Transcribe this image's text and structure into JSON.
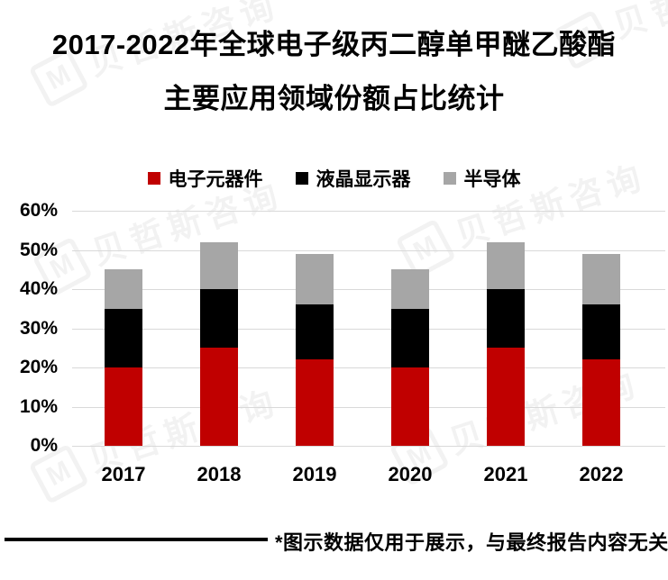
{
  "title": {
    "line1": "2017-2022年全球电子级丙二醇单甲醚乙酸酯",
    "line2": "主要应用领域份额占比统计"
  },
  "legend": {
    "items": [
      {
        "label": "电子元器件",
        "color": "#c00000"
      },
      {
        "label": "液晶显示器",
        "color": "#000000"
      },
      {
        "label": "半导体",
        "color": "#a6a6a6"
      }
    ]
  },
  "chart_data": {
    "type": "bar",
    "stacked": true,
    "title": "2017-2022年全球电子级丙二醇单甲醚乙酸酯主要应用领域份额占比统计",
    "categories": [
      "2017",
      "2018",
      "2019",
      "2020",
      "2021",
      "2022"
    ],
    "series": [
      {
        "name": "电子元器件",
        "color": "#c00000",
        "values": [
          20,
          25,
          22,
          20,
          25,
          22
        ]
      },
      {
        "name": "液晶显示器",
        "color": "#000000",
        "values": [
          15,
          15,
          14,
          15,
          15,
          14
        ]
      },
      {
        "name": "半导体",
        "color": "#a6a6a6",
        "values": [
          10,
          12,
          13,
          10,
          12,
          13
        ]
      }
    ],
    "stack_totals": [
      45,
      52,
      49,
      45,
      52,
      49
    ],
    "xlabel": "",
    "ylabel": "",
    "ylim": [
      0,
      60
    ],
    "yticks": [
      {
        "value": 60,
        "label": "60%"
      },
      {
        "value": 50,
        "label": "50%"
      },
      {
        "value": 40,
        "label": "40%"
      },
      {
        "value": 30,
        "label": "30%"
      },
      {
        "value": 20,
        "label": "20%"
      },
      {
        "value": 10,
        "label": "10%"
      },
      {
        "value": 0,
        "label": "0%"
      }
    ],
    "grid": true,
    "gridline_color": "#d9d9d9",
    "legend_position": "top"
  },
  "footnote": {
    "text": "*图示数据仅用于展示，与最终报告内容无关"
  },
  "watermark": {
    "text": "贝哲斯咨询",
    "logo_letter": "M"
  }
}
